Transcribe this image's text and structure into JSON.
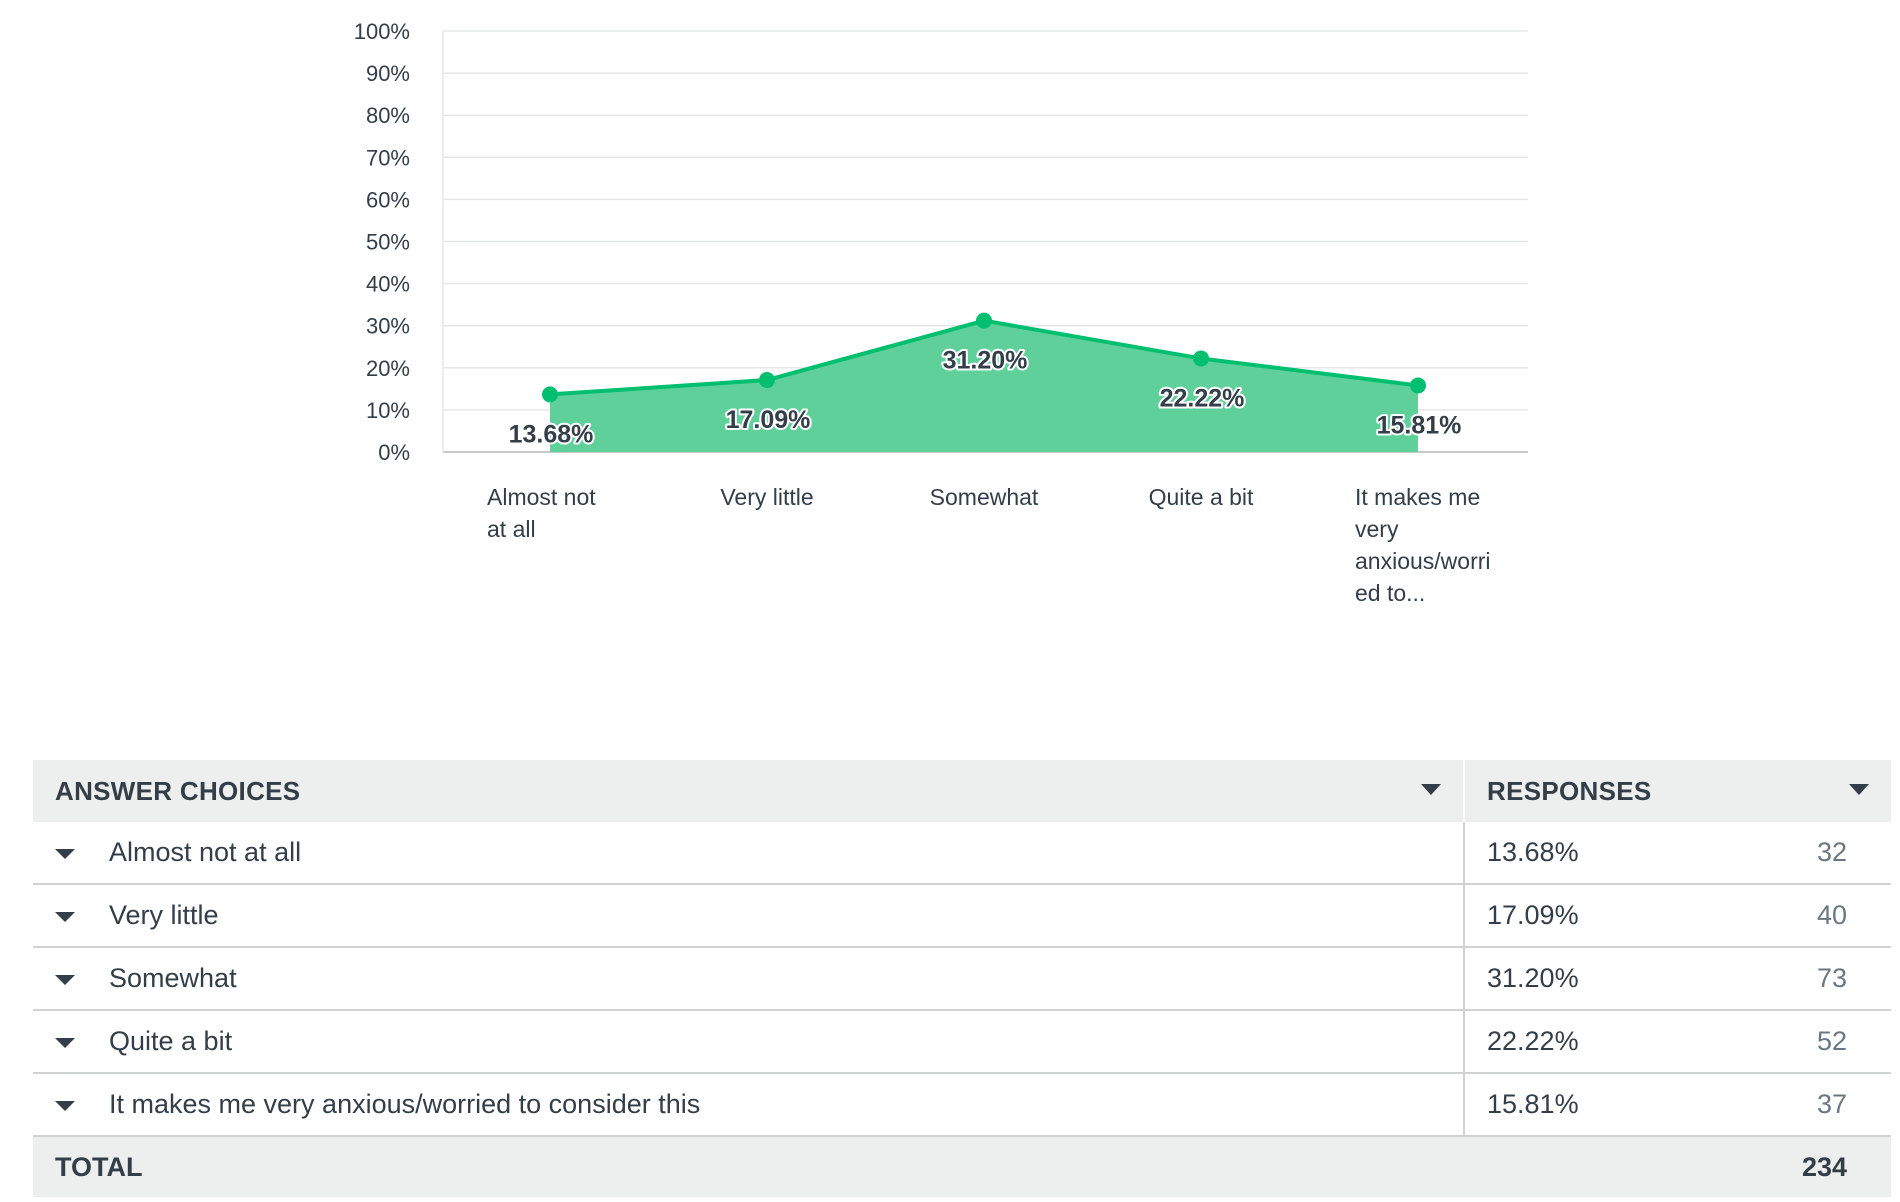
{
  "chart_data": {
    "type": "area",
    "categories": [
      "Almost not at all",
      "Very little",
      "Somewhat",
      "Quite a bit",
      "It makes me very anxious/worried to consider this"
    ],
    "category_tick_lines": [
      [
        "Almost not",
        "at all"
      ],
      [
        "Very little"
      ],
      [
        "Somewhat"
      ],
      [
        "Quite a bit"
      ],
      [
        "It makes me",
        "very",
        "anxious/worri",
        "ed to..."
      ]
    ],
    "values": [
      13.68,
      17.09,
      31.2,
      22.22,
      15.81
    ],
    "data_labels": [
      "13.68%",
      "17.09%",
      "31.20%",
      "22.22%",
      "15.81%"
    ],
    "ylim": [
      0,
      100
    ],
    "yticks": [
      "0%",
      "10%",
      "20%",
      "30%",
      "40%",
      "50%",
      "60%",
      "70%",
      "80%",
      "90%",
      "100%"
    ],
    "grid": true,
    "colors": {
      "line": "#00bf6f",
      "fill": "#5fd09a"
    }
  },
  "table": {
    "headers": {
      "choices": "ANSWER CHOICES",
      "responses": "RESPONSES"
    },
    "rows": [
      {
        "choice": "Almost not at all",
        "percent": "13.68%",
        "count": "32"
      },
      {
        "choice": "Very little",
        "percent": "17.09%",
        "count": "40"
      },
      {
        "choice": "Somewhat",
        "percent": "31.20%",
        "count": "73"
      },
      {
        "choice": "Quite a bit",
        "percent": "22.22%",
        "count": "52"
      },
      {
        "choice": "It makes me very anxious/worried to consider this",
        "percent": "15.81%",
        "count": "37"
      }
    ],
    "total_label": "TOTAL",
    "total_value": "234"
  }
}
